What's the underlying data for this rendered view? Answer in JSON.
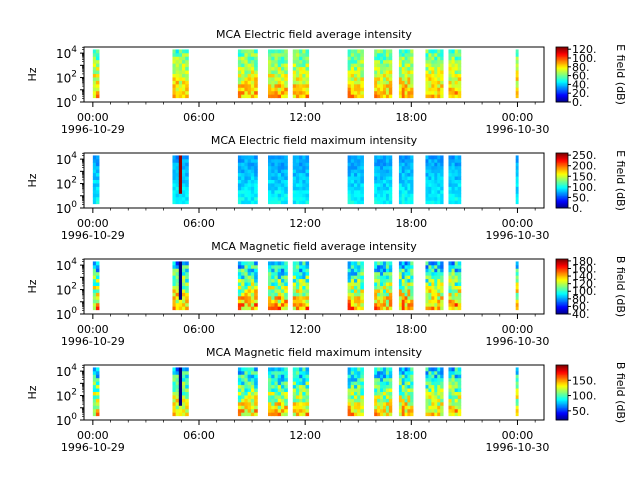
{
  "chart_data": [
    {
      "type": "heatmap",
      "title": "MCA  Electric field average intensity",
      "ylabel": "Hz",
      "colorbar_label": "E field (dB)",
      "colorbar_ticks": [
        "0.",
        "20.",
        "40.",
        "60.",
        "80.",
        "100.",
        "120."
      ],
      "colorbar_range": [
        0,
        125
      ],
      "yticks": [
        {
          "base": "10",
          "exp": "0"
        },
        {
          "base": "10",
          "exp": "2"
        },
        {
          "base": "10",
          "exp": "4"
        }
      ],
      "yrange_log10": [
        0,
        4.5
      ],
      "xtick_labels": [
        "00:00",
        "06:00",
        "12:00",
        "18:00",
        "00:00"
      ],
      "xtick_hours": [
        0,
        6,
        12,
        18,
        24
      ],
      "date_labels": [
        "1996-10-29",
        "1996-10-30"
      ],
      "xrange_hours": [
        -0.5,
        25.5
      ],
      "data_intervals_hours": [
        [
          0,
          0.35
        ],
        [
          4.5,
          5.4
        ],
        [
          8.2,
          9.3
        ],
        [
          9.9,
          11.0
        ],
        [
          11.3,
          12.2
        ],
        [
          14.4,
          15.3
        ],
        [
          15.9,
          16.9
        ],
        [
          17.3,
          18.1
        ],
        [
          18.8,
          19.8
        ],
        [
          20.1,
          20.8
        ],
        [
          23.9,
          24.0
        ]
      ],
      "level_db": 72,
      "spread_db": 30,
      "spike_hours": [],
      "spike_db": 0
    },
    {
      "type": "heatmap",
      "title": "MCA  Electric field maximum intensity",
      "ylabel": "Hz",
      "colorbar_label": "E field (dB)",
      "colorbar_ticks": [
        "0.",
        "50.",
        "100.",
        "150.",
        "200.",
        "250."
      ],
      "colorbar_range": [
        0,
        260
      ],
      "yticks": [
        {
          "base": "10",
          "exp": "0"
        },
        {
          "base": "10",
          "exp": "2"
        },
        {
          "base": "10",
          "exp": "4"
        }
      ],
      "yrange_log10": [
        0,
        4.5
      ],
      "xtick_labels": [
        "00:00",
        "06:00",
        "12:00",
        "18:00",
        "00:00"
      ],
      "xtick_hours": [
        0,
        6,
        12,
        18,
        24
      ],
      "date_labels": [
        "1996-10-29",
        "1996-10-30"
      ],
      "xrange_hours": [
        -0.5,
        25.5
      ],
      "data_intervals_hours": [
        [
          0,
          0.35
        ],
        [
          4.5,
          5.4
        ],
        [
          8.2,
          9.3
        ],
        [
          9.9,
          11.0
        ],
        [
          11.3,
          12.2
        ],
        [
          14.4,
          15.3
        ],
        [
          15.9,
          16.9
        ],
        [
          17.3,
          18.1
        ],
        [
          18.8,
          19.8
        ],
        [
          20.1,
          20.8
        ],
        [
          23.9,
          24.0
        ]
      ],
      "level_db": 85,
      "spread_db": 25,
      "spike_hours": [
        5.0
      ],
      "spike_db": 255
    },
    {
      "type": "heatmap",
      "title": "MCA  Magnetic field average intensity",
      "ylabel": "Hz",
      "colorbar_label": "B field (dB)",
      "colorbar_ticks": [
        "40.",
        "60.",
        "80.",
        "100.",
        "120.",
        "140.",
        "160.",
        "180."
      ],
      "colorbar_range": [
        40,
        185
      ],
      "yticks": [
        {
          "base": "10",
          "exp": "0"
        },
        {
          "base": "10",
          "exp": "2"
        },
        {
          "base": "10",
          "exp": "4"
        }
      ],
      "yrange_log10": [
        0,
        4.5
      ],
      "xtick_labels": [
        "00:00",
        "06:00",
        "12:00",
        "18:00",
        "00:00"
      ],
      "xtick_hours": [
        0,
        6,
        12,
        18,
        24
      ],
      "date_labels": [
        "1996-10-29",
        "1996-10-30"
      ],
      "xrange_hours": [
        -0.5,
        25.5
      ],
      "data_intervals_hours": [
        [
          0,
          0.35
        ],
        [
          4.5,
          5.4
        ],
        [
          8.2,
          9.3
        ],
        [
          9.9,
          11.0
        ],
        [
          11.3,
          12.2
        ],
        [
          14.4,
          15.3
        ],
        [
          15.9,
          16.9
        ],
        [
          17.3,
          18.1
        ],
        [
          18.8,
          19.8
        ],
        [
          20.1,
          20.8
        ],
        [
          23.9,
          24.0
        ]
      ],
      "level_db": 115,
      "spread_db": 55,
      "spike_hours": [
        5.0
      ],
      "spike_db": 40
    },
    {
      "type": "heatmap",
      "title": "MCA  Magnetic field maximum intensity",
      "ylabel": "Hz",
      "colorbar_label": "B field (dB)",
      "colorbar_ticks": [
        "50.",
        "100.",
        "150."
      ],
      "colorbar_range": [
        20,
        200
      ],
      "yticks": [
        {
          "base": "10",
          "exp": "0"
        },
        {
          "base": "10",
          "exp": "2"
        },
        {
          "base": "10",
          "exp": "4"
        }
      ],
      "yrange_log10": [
        0,
        4.5
      ],
      "xtick_labels": [
        "00:00",
        "06:00",
        "12:00",
        "18:00",
        "00:00"
      ],
      "xtick_hours": [
        0,
        6,
        12,
        18,
        24
      ],
      "date_labels": [
        "1996-10-29",
        "1996-10-30"
      ],
      "xrange_hours": [
        -0.5,
        25.5
      ],
      "data_intervals_hours": [
        [
          0,
          0.35
        ],
        [
          4.5,
          5.4
        ],
        [
          8.2,
          9.3
        ],
        [
          9.9,
          11.0
        ],
        [
          11.3,
          12.2
        ],
        [
          14.4,
          15.3
        ],
        [
          15.9,
          16.9
        ],
        [
          17.3,
          18.1
        ],
        [
          18.8,
          19.8
        ],
        [
          20.1,
          20.8
        ],
        [
          23.9,
          24.0
        ]
      ],
      "level_db": 110,
      "spread_db": 60,
      "spike_hours": [
        5.0
      ],
      "spike_db": 20
    }
  ]
}
